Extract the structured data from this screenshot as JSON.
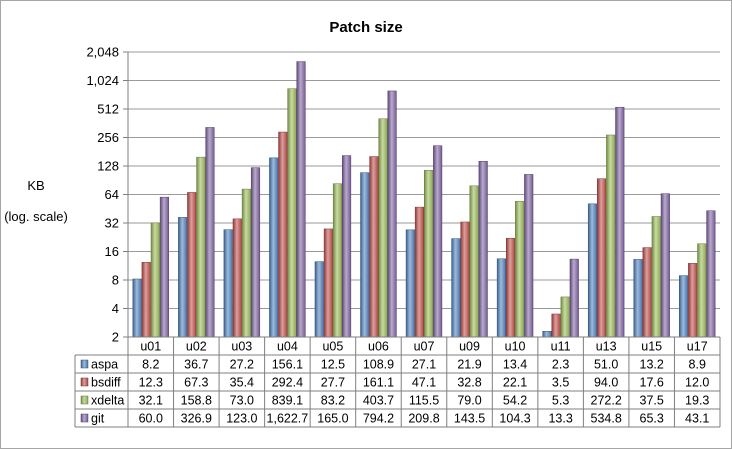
{
  "chart_data": {
    "type": "bar",
    "title": "Patch size",
    "ylabel": [
      "KB",
      "(log. scale)"
    ],
    "y_scale": "log2",
    "ylim": [
      2,
      2048
    ],
    "y_ticks": [
      "2",
      "4",
      "8",
      "16",
      "32",
      "64",
      "128",
      "256",
      "512",
      "1,024",
      "2,048"
    ],
    "categories": [
      "u01",
      "u02",
      "u03",
      "u04",
      "u05",
      "u06",
      "u07",
      "u09",
      "u10",
      "u11",
      "u13",
      "u15",
      "u17"
    ],
    "legend_placement": "data-table",
    "gridlines": true,
    "colors": {
      "aspa": "#4f81bd",
      "bsdiff": "#c0504d",
      "xdelta": "#9bbb59",
      "git": "#8064a2"
    },
    "series": [
      {
        "name": "aspa",
        "values": [
          8.2,
          36.7,
          27.2,
          156.1,
          12.5,
          108.9,
          27.1,
          21.9,
          13.4,
          2.3,
          51.0,
          13.2,
          8.9
        ],
        "labels": [
          "8.2",
          "36.7",
          "27.2",
          "156.1",
          "12.5",
          "108.9",
          "27.1",
          "21.9",
          "13.4",
          "2.3",
          "51.0",
          "13.2",
          "8.9"
        ]
      },
      {
        "name": "bsdiff",
        "values": [
          12.3,
          67.3,
          35.4,
          292.4,
          27.7,
          161.1,
          47.1,
          32.8,
          22.1,
          3.5,
          94.0,
          17.6,
          12.0
        ],
        "labels": [
          "12.3",
          "67.3",
          "35.4",
          "292.4",
          "27.7",
          "161.1",
          "47.1",
          "32.8",
          "22.1",
          "3.5",
          "94.0",
          "17.6",
          "12.0"
        ]
      },
      {
        "name": "xdelta",
        "values": [
          32.1,
          158.8,
          73.0,
          839.1,
          83.2,
          403.7,
          115.5,
          79.0,
          54.2,
          5.3,
          272.2,
          37.5,
          19.3
        ],
        "labels": [
          "32.1",
          "158.8",
          "73.0",
          "839.1",
          "83.2",
          "403.7",
          "115.5",
          "79.0",
          "54.2",
          "5.3",
          "272.2",
          "37.5",
          "19.3"
        ]
      },
      {
        "name": "git",
        "values": [
          60.0,
          326.9,
          123.0,
          1622.7,
          165.0,
          794.2,
          209.8,
          143.5,
          104.3,
          13.3,
          534.8,
          65.3,
          43.1
        ],
        "labels": [
          "60.0",
          "326.9",
          "123.0",
          "1,622.7",
          "165.0",
          "794.2",
          "209.8",
          "143.5",
          "104.3",
          "13.3",
          "534.8",
          "65.3",
          "43.1"
        ]
      }
    ]
  }
}
